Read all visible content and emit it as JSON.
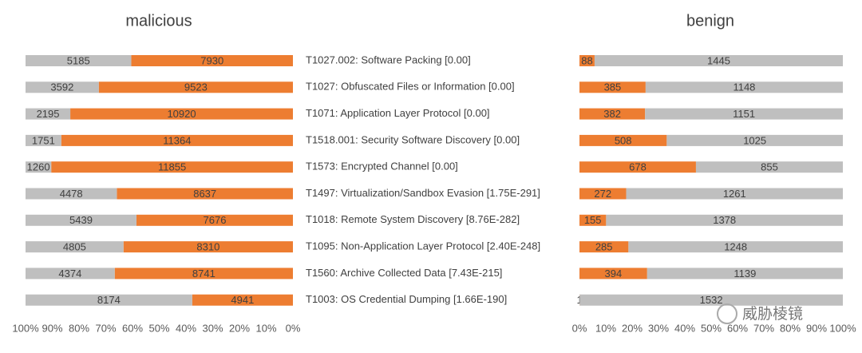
{
  "chart_data": [
    {
      "type": "bar",
      "stacking": "percent",
      "orientation": "horizontal",
      "x_reversed": true,
      "title": "malicious",
      "categories": [
        "T1027.002: Software Packing [0.00]",
        "T1027: Obfuscated Files or Information [0.00]",
        "T1071: Application Layer Protocol [0.00]",
        "T1518.001: Security Software Discovery [0.00]",
        "T1573: Encrypted Channel [0.00]",
        "T1497: Virtualization/Sandbox Evasion [1.75E-291]",
        "T1018: Remote System Discovery [8.76E-282]",
        "T1095: Non-Application Layer Protocol [2.40E-248]",
        "T1560: Archive Collected Data [7.43E-215]",
        "T1003: OS Credential Dumping [1.66E-190]"
      ],
      "series": [
        {
          "color": "#ed7d31",
          "values": [
            7930,
            9523,
            10920,
            11364,
            11855,
            8637,
            7676,
            8310,
            8741,
            4941
          ]
        },
        {
          "color": "#bfbfbf",
          "values": [
            5185,
            3592,
            2195,
            1751,
            1260,
            4478,
            5439,
            4805,
            4374,
            8174
          ]
        }
      ],
      "xlim": [
        0,
        100
      ],
      "xticks": [
        {
          "value": 0,
          "label": "0%"
        },
        {
          "value": 10,
          "label": "10%"
        },
        {
          "value": 20,
          "label": "20%"
        },
        {
          "value": 30,
          "label": "30%"
        },
        {
          "value": 40,
          "label": "40%"
        },
        {
          "value": 50,
          "label": "50%"
        },
        {
          "value": 60,
          "label": "60%"
        },
        {
          "value": 70,
          "label": "70%"
        },
        {
          "value": 80,
          "label": "80%"
        },
        {
          "value": 90,
          "label": "90%"
        },
        {
          "value": 100,
          "label": "100%"
        }
      ]
    },
    {
      "type": "bar",
      "stacking": "percent",
      "orientation": "horizontal",
      "x_reversed": false,
      "title": "benign",
      "series": [
        {
          "color": "#ed7d31",
          "values": [
            88,
            385,
            382,
            508,
            678,
            272,
            155,
            285,
            394,
            1
          ]
        },
        {
          "color": "#bfbfbf",
          "values": [
            1445,
            1148,
            1151,
            1025,
            855,
            1261,
            1378,
            1248,
            1139,
            1532
          ]
        }
      ],
      "xlim": [
        0,
        100
      ],
      "xticks": [
        {
          "value": 0,
          "label": "0%"
        },
        {
          "value": 10,
          "label": "10%"
        },
        {
          "value": 20,
          "label": "20%"
        },
        {
          "value": 30,
          "label": "30%"
        },
        {
          "value": 40,
          "label": "40%"
        },
        {
          "value": 50,
          "label": "50%"
        },
        {
          "value": 60,
          "label": "60%"
        },
        {
          "value": 70,
          "label": "70%"
        },
        {
          "value": 80,
          "label": "80%"
        },
        {
          "value": 90,
          "label": "90%"
        },
        {
          "value": 100,
          "label": "100%"
        }
      ]
    }
  ],
  "watermark": "威胁棱镜"
}
